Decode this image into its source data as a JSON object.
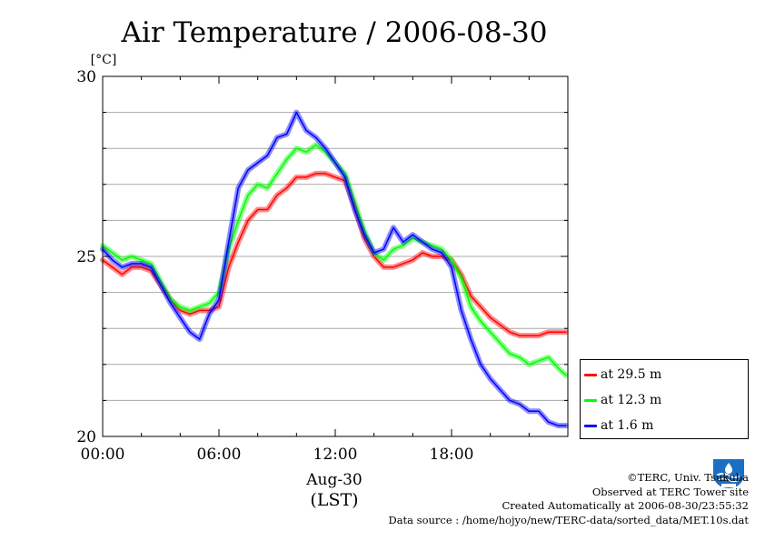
{
  "chart_data": {
    "type": "line",
    "title": "Air Temperature / 2006-08-30",
    "ylabel": "[°C]",
    "xlabel_date": "Aug-30",
    "xlabel_tz": "(LST)",
    "xlim": [
      0,
      24
    ],
    "ylim": [
      20,
      30
    ],
    "yticks": [
      {
        "value": 20,
        "label": "20"
      },
      {
        "value": 25,
        "label": "25"
      },
      {
        "value": 30,
        "label": "30"
      }
    ],
    "xticks": [
      {
        "value": 0,
        "label": "00:00"
      },
      {
        "value": 6,
        "label": "06:00"
      },
      {
        "value": 12,
        "label": "12:00"
      },
      {
        "value": 18,
        "label": "18:00"
      }
    ],
    "grid": true,
    "legend_position": "right-bottom",
    "series": [
      {
        "name": "at 29.5 m",
        "color": "#ff0000",
        "x": [
          0,
          0.5,
          1,
          1.5,
          2,
          2.5,
          3,
          3.5,
          4,
          4.5,
          5,
          5.5,
          6,
          6.5,
          7,
          7.5,
          8,
          8.5,
          9,
          9.5,
          10,
          10.5,
          11,
          11.5,
          12,
          12.5,
          13,
          13.5,
          14,
          14.5,
          15,
          15.5,
          16,
          16.5,
          17,
          17.5,
          18,
          18.5,
          19,
          19.5,
          20,
          20.5,
          21,
          21.5,
          22,
          22.5,
          23,
          23.5,
          23.9
        ],
        "values": [
          24.9,
          24.7,
          24.5,
          24.7,
          24.7,
          24.6,
          24.2,
          23.8,
          23.5,
          23.4,
          23.5,
          23.5,
          23.6,
          24.7,
          25.4,
          26.0,
          26.3,
          26.3,
          26.7,
          26.9,
          27.2,
          27.2,
          27.3,
          27.3,
          27.2,
          27.1,
          26.4,
          25.5,
          25.0,
          24.7,
          24.7,
          24.8,
          24.9,
          25.1,
          25.0,
          25.0,
          24.9,
          24.5,
          23.9,
          23.6,
          23.3,
          23.1,
          22.9,
          22.8,
          22.8,
          22.8,
          22.9,
          22.9,
          22.9
        ]
      },
      {
        "name": "at 12.3 m",
        "color": "#00ff00",
        "x": [
          0,
          0.5,
          1,
          1.5,
          2,
          2.5,
          3,
          3.5,
          4,
          4.5,
          5,
          5.5,
          6,
          6.5,
          7,
          7.5,
          8,
          8.5,
          9,
          9.5,
          10,
          10.5,
          11,
          11.5,
          12,
          12.5,
          13,
          13.5,
          14,
          14.5,
          15,
          15.5,
          16,
          16.5,
          17,
          17.5,
          18,
          18.5,
          19,
          19.5,
          20,
          20.5,
          21,
          21.5,
          22,
          22.5,
          23,
          23.5,
          23.9
        ],
        "values": [
          25.3,
          25.1,
          24.9,
          25.0,
          24.9,
          24.8,
          24.3,
          23.8,
          23.6,
          23.5,
          23.6,
          23.7,
          24.0,
          25.2,
          26.0,
          26.7,
          27.0,
          26.9,
          27.3,
          27.7,
          28.0,
          27.9,
          28.1,
          27.9,
          27.6,
          27.3,
          26.5,
          25.7,
          25.1,
          24.9,
          25.2,
          25.3,
          25.5,
          25.4,
          25.3,
          25.2,
          24.9,
          24.4,
          23.6,
          23.2,
          22.9,
          22.6,
          22.3,
          22.2,
          22.0,
          22.1,
          22.2,
          21.9,
          21.7
        ]
      },
      {
        "name": "at 1.6 m",
        "color": "#0000ff",
        "x": [
          0,
          0.5,
          1,
          1.5,
          2,
          2.5,
          3,
          3.5,
          4,
          4.5,
          5,
          5.5,
          6,
          6.5,
          7,
          7.5,
          8,
          8.5,
          9,
          9.5,
          10,
          10.5,
          11,
          11.5,
          12,
          12.5,
          13,
          13.5,
          14,
          14.5,
          15,
          15.5,
          16,
          16.5,
          17,
          17.5,
          18,
          18.5,
          19,
          19.5,
          20,
          20.5,
          21,
          21.5,
          22,
          22.5,
          23,
          23.5,
          23.9
        ],
        "values": [
          25.2,
          24.9,
          24.7,
          24.8,
          24.8,
          24.7,
          24.2,
          23.7,
          23.3,
          22.9,
          22.7,
          23.4,
          23.8,
          25.4,
          26.9,
          27.4,
          27.6,
          27.8,
          28.3,
          28.4,
          29.0,
          28.5,
          28.3,
          28.0,
          27.6,
          27.2,
          26.3,
          25.6,
          25.1,
          25.2,
          25.8,
          25.4,
          25.6,
          25.4,
          25.2,
          25.1,
          24.7,
          23.5,
          22.7,
          22.0,
          21.6,
          21.3,
          21.0,
          20.9,
          20.7,
          20.7,
          20.4,
          20.3,
          20.3
        ]
      }
    ]
  },
  "credits": {
    "copyright": "©TERC, Univ. Tsukuba",
    "observed": "Observed at TERC Tower site",
    "created": "Created Automatically at 2006-08-30/23:55:32",
    "source": "Data source : /home/hojyo/new/TERC-data/sorted_data/MET.10s.dat"
  }
}
